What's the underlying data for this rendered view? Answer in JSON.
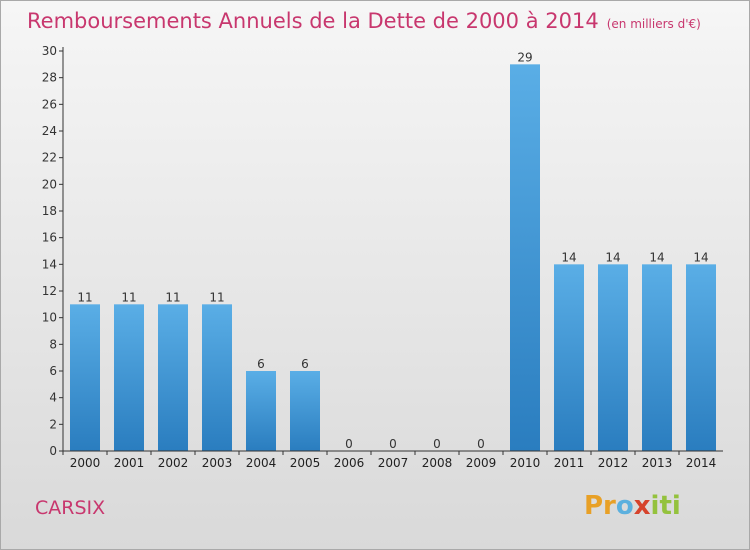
{
  "title": "Remboursements Annuels de la Dette de 2000 à 2014",
  "subtitle": "(en milliers d'€)",
  "commune": "CARSIX",
  "brand": [
    "Pr",
    "o",
    "x",
    "iti"
  ],
  "colors": {
    "title": "#c8376e",
    "bar_light": "#5aaee6",
    "bar_dark": "#2a7dbf",
    "axis": "#333333"
  },
  "chart_data": {
    "type": "bar",
    "categories": [
      "2000",
      "2001",
      "2002",
      "2003",
      "2004",
      "2005",
      "2006",
      "2007",
      "2008",
      "2009",
      "2010",
      "2011",
      "2012",
      "2013",
      "2014"
    ],
    "values": [
      11,
      11,
      11,
      11,
      6,
      6,
      0,
      0,
      0,
      0,
      29,
      14,
      14,
      14,
      14
    ],
    "ylim": [
      0,
      30
    ],
    "yticks": [
      0,
      2,
      4,
      6,
      8,
      10,
      12,
      14,
      16,
      18,
      20,
      22,
      24,
      26,
      28,
      30
    ],
    "grid": false,
    "data_labels": true
  }
}
